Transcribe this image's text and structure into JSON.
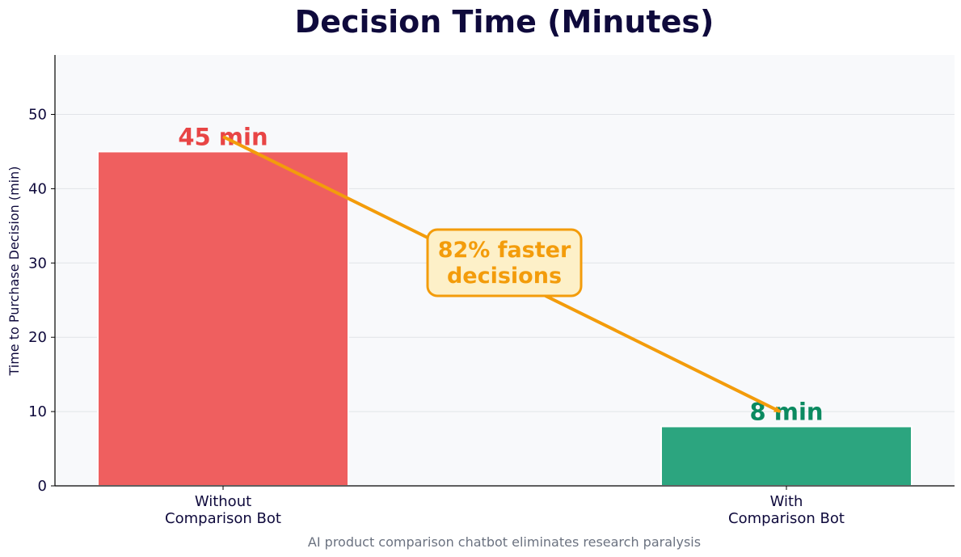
{
  "chart_data": {
    "type": "bar",
    "title": "Decision Time (Minutes)",
    "ylabel": "Time to Purchase Decision (min)",
    "xlabel": "",
    "categories": [
      "Without\nComparison Bot",
      "With\nComparison Bot"
    ],
    "values": [
      45,
      8
    ],
    "bar_colors": [
      "#ef5f5f",
      "#2ca57f"
    ],
    "data_labels": [
      "45 min",
      "8 min"
    ],
    "data_label_colors": [
      "#e84545",
      "#0b8a60"
    ],
    "ylim": [
      0,
      58
    ],
    "yticks": [
      0,
      10,
      20,
      30,
      40,
      50
    ],
    "grid": "horizontal",
    "background": "#f8f9fb",
    "annotation": {
      "text": "82% faster\ndecisions",
      "color": "#f39c0b",
      "box_fill": "#fdf0c8",
      "arrow_from": {
        "category_index": 0,
        "value": 47
      },
      "arrow_to": {
        "category_index": 1,
        "value": 10
      }
    },
    "caption": "AI product comparison chatbot eliminates research paralysis"
  }
}
